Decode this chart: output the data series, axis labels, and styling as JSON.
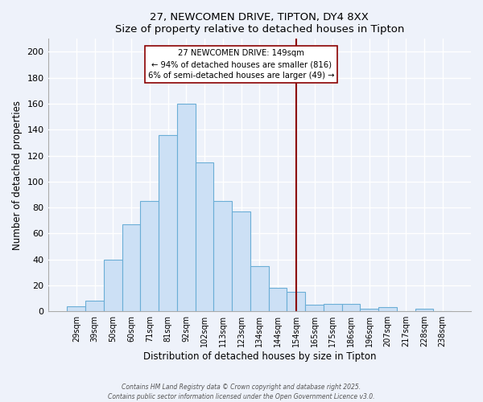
{
  "title": "27, NEWCOMEN DRIVE, TIPTON, DY4 8XX",
  "subtitle": "Size of property relative to detached houses in Tipton",
  "xlabel": "Distribution of detached houses by size in Tipton",
  "ylabel": "Number of detached properties",
  "categories": [
    "29sqm",
    "39sqm",
    "50sqm",
    "60sqm",
    "71sqm",
    "81sqm",
    "92sqm",
    "102sqm",
    "113sqm",
    "123sqm",
    "134sqm",
    "144sqm",
    "154sqm",
    "165sqm",
    "175sqm",
    "186sqm",
    "196sqm",
    "207sqm",
    "217sqm",
    "228sqm",
    "238sqm"
  ],
  "values": [
    4,
    8,
    40,
    67,
    85,
    136,
    160,
    115,
    85,
    77,
    35,
    18,
    15,
    5,
    6,
    6,
    2,
    3,
    0,
    2,
    0
  ],
  "bar_color": "#cce0f5",
  "bar_edge_color": "#6baed6",
  "vline_color": "#8b0000",
  "annotation_title": "27 NEWCOMEN DRIVE: 149sqm",
  "annotation_line1": "← 94% of detached houses are smaller (816)",
  "annotation_line2": "6% of semi-detached houses are larger (49) →",
  "annotation_box_color": "#ffffff",
  "annotation_box_edge": "#8b0000",
  "ylim": [
    0,
    210
  ],
  "yticks": [
    0,
    20,
    40,
    60,
    80,
    100,
    120,
    140,
    160,
    180,
    200
  ],
  "footer1": "Contains HM Land Registry data © Crown copyright and database right 2025.",
  "footer2": "Contains public sector information licensed under the Open Government Licence v3.0.",
  "background_color": "#eef2fa",
  "grid_color": "#ffffff",
  "spine_color": "#aaaaaa"
}
